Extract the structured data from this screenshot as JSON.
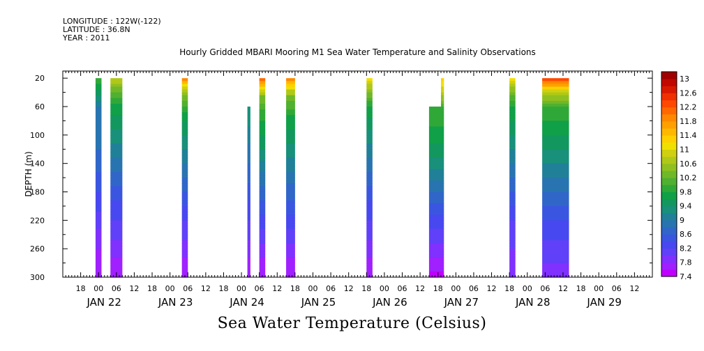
{
  "header": {
    "longitude": "LONGITUDE : 122W(-122)",
    "latitude": "LATITUDE : 36.8N",
    "year": "YEAR : 2011"
  },
  "chart_data": {
    "type": "heatmap",
    "title": "Hourly Gridded MBARI Mooring M1 Sea Water Temperature and Salinity Observations",
    "footer_label": "Sea Water Temperature (Celsius)",
    "ylabel": "DEPTH (m)",
    "x_range_hours": [
      "2011-01-21 12:00",
      "2011-01-29 18:00"
    ],
    "ylim": [
      300,
      10
    ],
    "y_ticks": [
      20,
      60,
      100,
      140,
      180,
      220,
      260,
      300
    ],
    "x_hour_labels": [
      {
        "t": "2011-01-21 18:00",
        "label": "18"
      },
      {
        "t": "2011-01-22 00:00",
        "label": "00"
      },
      {
        "t": "2011-01-22 06:00",
        "label": "06"
      },
      {
        "t": "2011-01-22 12:00",
        "label": "12"
      },
      {
        "t": "2011-01-22 18:00",
        "label": "18"
      },
      {
        "t": "2011-01-23 00:00",
        "label": "00"
      },
      {
        "t": "2011-01-23 06:00",
        "label": "06"
      },
      {
        "t": "2011-01-23 12:00",
        "label": "12"
      },
      {
        "t": "2011-01-23 18:00",
        "label": "18"
      },
      {
        "t": "2011-01-24 00:00",
        "label": "00"
      },
      {
        "t": "2011-01-24 06:00",
        "label": "06"
      },
      {
        "t": "2011-01-24 12:00",
        "label": "12"
      },
      {
        "t": "2011-01-24 18:00",
        "label": "18"
      },
      {
        "t": "2011-01-25 00:00",
        "label": "00"
      },
      {
        "t": "2011-01-25 06:00",
        "label": "06"
      },
      {
        "t": "2011-01-25 12:00",
        "label": "12"
      },
      {
        "t": "2011-01-25 18:00",
        "label": "18"
      },
      {
        "t": "2011-01-26 00:00",
        "label": "00"
      },
      {
        "t": "2011-01-26 06:00",
        "label": "06"
      },
      {
        "t": "2011-01-26 12:00",
        "label": "12"
      },
      {
        "t": "2011-01-26 18:00",
        "label": "18"
      },
      {
        "t": "2011-01-27 00:00",
        "label": "00"
      },
      {
        "t": "2011-01-27 06:00",
        "label": "06"
      },
      {
        "t": "2011-01-27 12:00",
        "label": "12"
      },
      {
        "t": "2011-01-27 18:00",
        "label": "18"
      },
      {
        "t": "2011-01-28 00:00",
        "label": "00"
      },
      {
        "t": "2011-01-28 06:00",
        "label": "06"
      },
      {
        "t": "2011-01-28 12:00",
        "label": "12"
      },
      {
        "t": "2011-01-28 18:00",
        "label": "18"
      },
      {
        "t": "2011-01-29 00:00",
        "label": "00"
      },
      {
        "t": "2011-01-29 06:00",
        "label": "06"
      },
      {
        "t": "2011-01-29 12:00",
        "label": "12"
      }
    ],
    "x_day_labels": [
      {
        "t": "2011-01-22 00:00",
        "label": "JAN 22"
      },
      {
        "t": "2011-01-23 00:00",
        "label": "JAN 23"
      },
      {
        "t": "2011-01-24 00:00",
        "label": "JAN 24"
      },
      {
        "t": "2011-01-25 00:00",
        "label": "JAN 25"
      },
      {
        "t": "2011-01-26 00:00",
        "label": "JAN 26"
      },
      {
        "t": "2011-01-27 00:00",
        "label": "JAN 27"
      },
      {
        "t": "2011-01-28 00:00",
        "label": "JAN 28"
      },
      {
        "t": "2011-01-29 00:00",
        "label": "JAN 29"
      }
    ],
    "colorbar": {
      "levels": [
        7.4,
        7.6,
        7.8,
        8.0,
        8.2,
        8.4,
        8.6,
        8.8,
        9.0,
        9.2,
        9.4,
        9.6,
        9.8,
        10.0,
        10.2,
        10.4,
        10.6,
        10.8,
        11.0,
        11.2,
        11.4,
        11.6,
        11.8,
        12.0,
        12.2,
        12.4,
        12.6,
        12.8,
        13.0,
        13.2
      ],
      "labels": [
        "7.4",
        "7.8",
        "8.2",
        "8.6",
        "9",
        "9.4",
        "9.8",
        "10.2",
        "10.6",
        "11",
        "11.4",
        "11.8",
        "12.2",
        "12.6",
        "13"
      ],
      "colors": [
        "#c000ff",
        "#a020ff",
        "#8030ff",
        "#6040f8",
        "#4848f0",
        "#3a56e0",
        "#3066c8",
        "#2874b0",
        "#208098",
        "#18907a",
        "#12985e",
        "#10a048",
        "#30a838",
        "#50b030",
        "#70b828",
        "#90c020",
        "#b0c818",
        "#d0d010",
        "#f0e000",
        "#ffd000",
        "#ffb800",
        "#ffa000",
        "#ff8800",
        "#ff6800",
        "#ff4800",
        "#f03000",
        "#d81800",
        "#c00800",
        "#a00000"
      ]
    },
    "profiles": [
      {
        "start": "2011-01-21 23:00",
        "end": "2011-01-22 01:00",
        "top_depth": 20,
        "temps": [
          {
            "d": 20,
            "v": 10.0
          },
          {
            "d": 40,
            "v": 9.5
          },
          {
            "d": 60,
            "v": 9.0
          },
          {
            "d": 100,
            "v": 8.9
          },
          {
            "d": 140,
            "v": 8.7
          },
          {
            "d": 180,
            "v": 8.4
          },
          {
            "d": 220,
            "v": 8.1
          },
          {
            "d": 260,
            "v": 7.8
          },
          {
            "d": 300,
            "v": 7.6
          }
        ]
      },
      {
        "start": "2011-01-22 04:00",
        "end": "2011-01-22 08:00",
        "top_depth": 20,
        "temps": [
          {
            "d": 20,
            "v": 10.8
          },
          {
            "d": 40,
            "v": 10.2
          },
          {
            "d": 60,
            "v": 9.7
          },
          {
            "d": 100,
            "v": 9.3
          },
          {
            "d": 140,
            "v": 8.9
          },
          {
            "d": 180,
            "v": 8.5
          },
          {
            "d": 220,
            "v": 8.2
          },
          {
            "d": 260,
            "v": 7.9
          },
          {
            "d": 300,
            "v": 7.6
          }
        ]
      },
      {
        "start": "2011-01-23 04:00",
        "end": "2011-01-23 06:00",
        "top_depth": 20,
        "temps": [
          {
            "d": 20,
            "v": 12.0
          },
          {
            "d": 30,
            "v": 11.0
          },
          {
            "d": 50,
            "v": 10.2
          },
          {
            "d": 80,
            "v": 9.6
          },
          {
            "d": 120,
            "v": 9.2
          },
          {
            "d": 180,
            "v": 8.6
          },
          {
            "d": 220,
            "v": 8.2
          },
          {
            "d": 260,
            "v": 7.9
          },
          {
            "d": 300,
            "v": 7.6
          }
        ]
      },
      {
        "start": "2011-01-24 02:00",
        "end": "2011-01-24 03:00",
        "top_depth": 60,
        "temps": [
          {
            "d": 60,
            "v": 9.4
          },
          {
            "d": 100,
            "v": 9.1
          },
          {
            "d": 140,
            "v": 8.8
          },
          {
            "d": 180,
            "v": 8.5
          },
          {
            "d": 220,
            "v": 8.2
          },
          {
            "d": 260,
            "v": 7.9
          },
          {
            "d": 300,
            "v": 7.6
          }
        ]
      },
      {
        "start": "2011-01-24 06:00",
        "end": "2011-01-24 08:00",
        "top_depth": 20,
        "temps": [
          {
            "d": 20,
            "v": 12.2
          },
          {
            "d": 30,
            "v": 11.4
          },
          {
            "d": 45,
            "v": 10.4
          },
          {
            "d": 70,
            "v": 9.9
          },
          {
            "d": 110,
            "v": 9.5
          },
          {
            "d": 160,
            "v": 8.9
          },
          {
            "d": 220,
            "v": 8.3
          },
          {
            "d": 260,
            "v": 7.9
          },
          {
            "d": 300,
            "v": 7.6
          }
        ]
      },
      {
        "start": "2011-01-24 15:00",
        "end": "2011-01-24 18:00",
        "top_depth": 20,
        "temps": [
          {
            "d": 20,
            "v": 12.0
          },
          {
            "d": 30,
            "v": 11.2
          },
          {
            "d": 50,
            "v": 10.2
          },
          {
            "d": 80,
            "v": 9.7
          },
          {
            "d": 120,
            "v": 9.3
          },
          {
            "d": 180,
            "v": 8.7
          },
          {
            "d": 220,
            "v": 8.3
          },
          {
            "d": 260,
            "v": 7.9
          },
          {
            "d": 300,
            "v": 7.6
          }
        ]
      },
      {
        "start": "2011-01-25 18:00",
        "end": "2011-01-25 20:00",
        "top_depth": 20,
        "temps": [
          {
            "d": 20,
            "v": 11.2
          },
          {
            "d": 35,
            "v": 10.6
          },
          {
            "d": 60,
            "v": 9.8
          },
          {
            "d": 100,
            "v": 9.3
          },
          {
            "d": 140,
            "v": 8.9
          },
          {
            "d": 180,
            "v": 8.5
          },
          {
            "d": 220,
            "v": 8.2
          },
          {
            "d": 260,
            "v": 7.9
          },
          {
            "d": 300,
            "v": 7.6
          }
        ]
      },
      {
        "start": "2011-01-26 15:00",
        "end": "2011-01-26 19:00",
        "top_depth": 60,
        "temps": [
          {
            "d": 60,
            "v": 10.0
          },
          {
            "d": 100,
            "v": 9.7
          },
          {
            "d": 140,
            "v": 9.3
          },
          {
            "d": 180,
            "v": 8.8
          },
          {
            "d": 220,
            "v": 8.3
          },
          {
            "d": 260,
            "v": 7.9
          },
          {
            "d": 300,
            "v": 7.5
          }
        ]
      },
      {
        "start": "2011-01-26 19:00",
        "end": "2011-01-26 20:00",
        "top_depth": 20,
        "temps": [
          {
            "d": 20,
            "v": 11.3
          },
          {
            "d": 40,
            "v": 10.8
          },
          {
            "d": 60,
            "v": 10.0
          },
          {
            "d": 100,
            "v": 9.7
          },
          {
            "d": 140,
            "v": 9.3
          },
          {
            "d": 180,
            "v": 8.8
          },
          {
            "d": 220,
            "v": 8.3
          },
          {
            "d": 260,
            "v": 7.9
          },
          {
            "d": 300,
            "v": 7.5
          }
        ]
      },
      {
        "start": "2011-01-27 18:00",
        "end": "2011-01-27 20:00",
        "top_depth": 20,
        "temps": [
          {
            "d": 20,
            "v": 11.1
          },
          {
            "d": 35,
            "v": 10.5
          },
          {
            "d": 60,
            "v": 9.8
          },
          {
            "d": 100,
            "v": 9.4
          },
          {
            "d": 140,
            "v": 9.0
          },
          {
            "d": 180,
            "v": 8.6
          },
          {
            "d": 220,
            "v": 8.2
          },
          {
            "d": 260,
            "v": 8.0
          },
          {
            "d": 300,
            "v": 7.8
          }
        ]
      },
      {
        "start": "2011-01-28 05:00",
        "end": "2011-01-28 14:00",
        "top_depth": 20,
        "temps": [
          {
            "d": 20,
            "v": 12.5
          },
          {
            "d": 28,
            "v": 11.8
          },
          {
            "d": 40,
            "v": 10.8
          },
          {
            "d": 60,
            "v": 10.0
          },
          {
            "d": 100,
            "v": 9.6
          },
          {
            "d": 140,
            "v": 9.2
          },
          {
            "d": 180,
            "v": 8.8
          },
          {
            "d": 220,
            "v": 8.4
          },
          {
            "d": 260,
            "v": 8.1
          },
          {
            "d": 300,
            "v": 7.9
          }
        ]
      }
    ]
  }
}
